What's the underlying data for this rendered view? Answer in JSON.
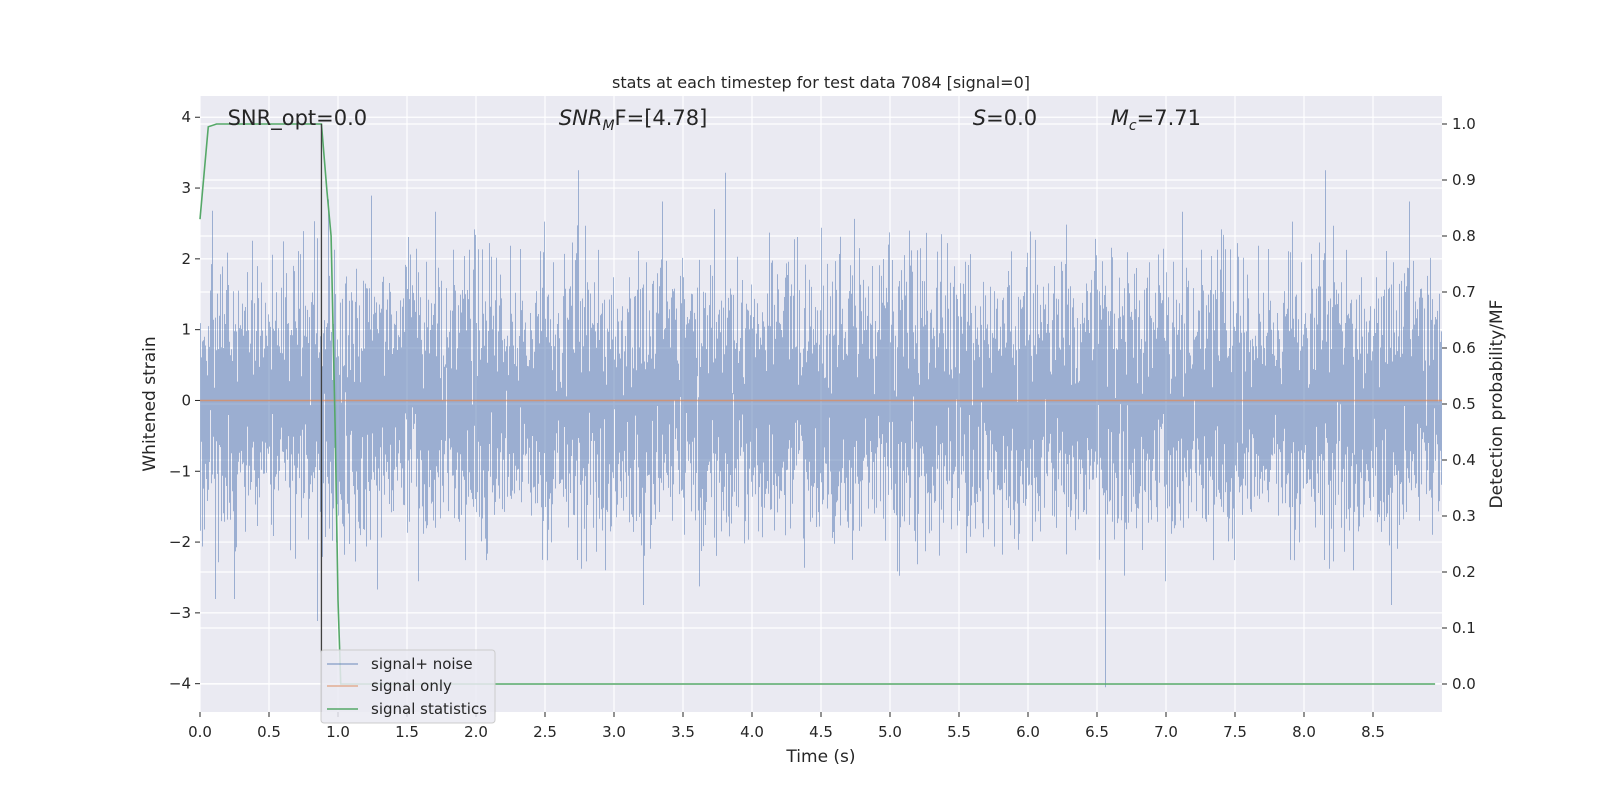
{
  "chart_data": {
    "type": "line",
    "title": "stats at each timestep for test data 7084 [signal=0]",
    "xlabel": "Time (s)",
    "ylabel": "Whitened strain",
    "y2label": "Detection probability/MF",
    "xlim": [
      0.0,
      9.0
    ],
    "ylim": [
      -4.4,
      4.3
    ],
    "y2lim": [
      -0.05,
      1.05
    ],
    "x_ticks": [
      "0.0",
      "0.5",
      "1.0",
      "1.5",
      "2.0",
      "2.5",
      "3.0",
      "3.5",
      "4.0",
      "4.5",
      "5.0",
      "5.5",
      "6.0",
      "6.5",
      "7.0",
      "7.5",
      "8.0",
      "8.5"
    ],
    "x_tick_values": [
      0.0,
      0.5,
      1.0,
      1.5,
      2.0,
      2.5,
      3.0,
      3.5,
      4.0,
      4.5,
      5.0,
      5.5,
      6.0,
      6.5,
      7.0,
      7.5,
      8.0,
      8.5
    ],
    "y_ticks": [
      "−4",
      "−3",
      "−2",
      "−1",
      "0",
      "1",
      "2",
      "3",
      "4"
    ],
    "y_tick_values": [
      -4,
      -3,
      -2,
      -1,
      0,
      1,
      2,
      3,
      4
    ],
    "y2_ticks": [
      "0.0",
      "0.1",
      "0.2",
      "0.3",
      "0.4",
      "0.5",
      "0.6",
      "0.7",
      "0.8",
      "0.9",
      "1.0"
    ],
    "y2_tick_values": [
      0.0,
      0.1,
      0.2,
      0.3,
      0.4,
      0.5,
      0.6,
      0.7,
      0.8,
      0.9,
      1.0
    ],
    "grid": true,
    "legend_position": "bottom-left",
    "annotations": [
      {
        "text": "SNR_opt=0.0",
        "x": 0.2,
        "y": 4.0
      },
      {
        "text": "SNR",
        "sub": "M",
        "tail": "F=[4.78]",
        "italic": true,
        "x": 2.6,
        "y": 4.0
      },
      {
        "text": "S",
        "tail": "=0.0",
        "italic": true,
        "x": 5.6,
        "y": 4.0
      },
      {
        "text": "M",
        "sub": "c",
        "tail": "=7.71",
        "italic": true,
        "x": 6.6,
        "y": 4.0
      }
    ],
    "vline_x": 0.88,
    "series": [
      {
        "name": "signal+ noise",
        "color": "#4c72b0",
        "note": "dense whitened noise, ~8192 samples",
        "rendered_as": "noise",
        "abs_max": 3.9,
        "abs_min": -4.05
      },
      {
        "name": "signal only",
        "color": "#dd8452",
        "x": [
          0.0,
          9.0
        ],
        "y": [
          0.0,
          0.0
        ]
      },
      {
        "name": "signal statistics",
        "color": "#55a868",
        "axis": "right",
        "x": [
          0.0,
          0.06,
          0.12,
          0.2,
          0.4,
          0.6,
          0.8,
          0.88,
          0.92,
          0.95,
          0.98,
          1.0,
          1.02,
          1.5,
          2.0,
          3.0,
          4.0,
          5.0,
          6.0,
          7.0,
          8.0,
          8.95
        ],
        "y": [
          0.83,
          0.995,
          1.0,
          1.0,
          1.0,
          1.0,
          1.0,
          1.0,
          0.88,
          0.8,
          0.45,
          0.15,
          0.0,
          0.0,
          0.0,
          0.0,
          0.0,
          0.0,
          0.0,
          0.0,
          0.0,
          0.0
        ]
      }
    ]
  }
}
